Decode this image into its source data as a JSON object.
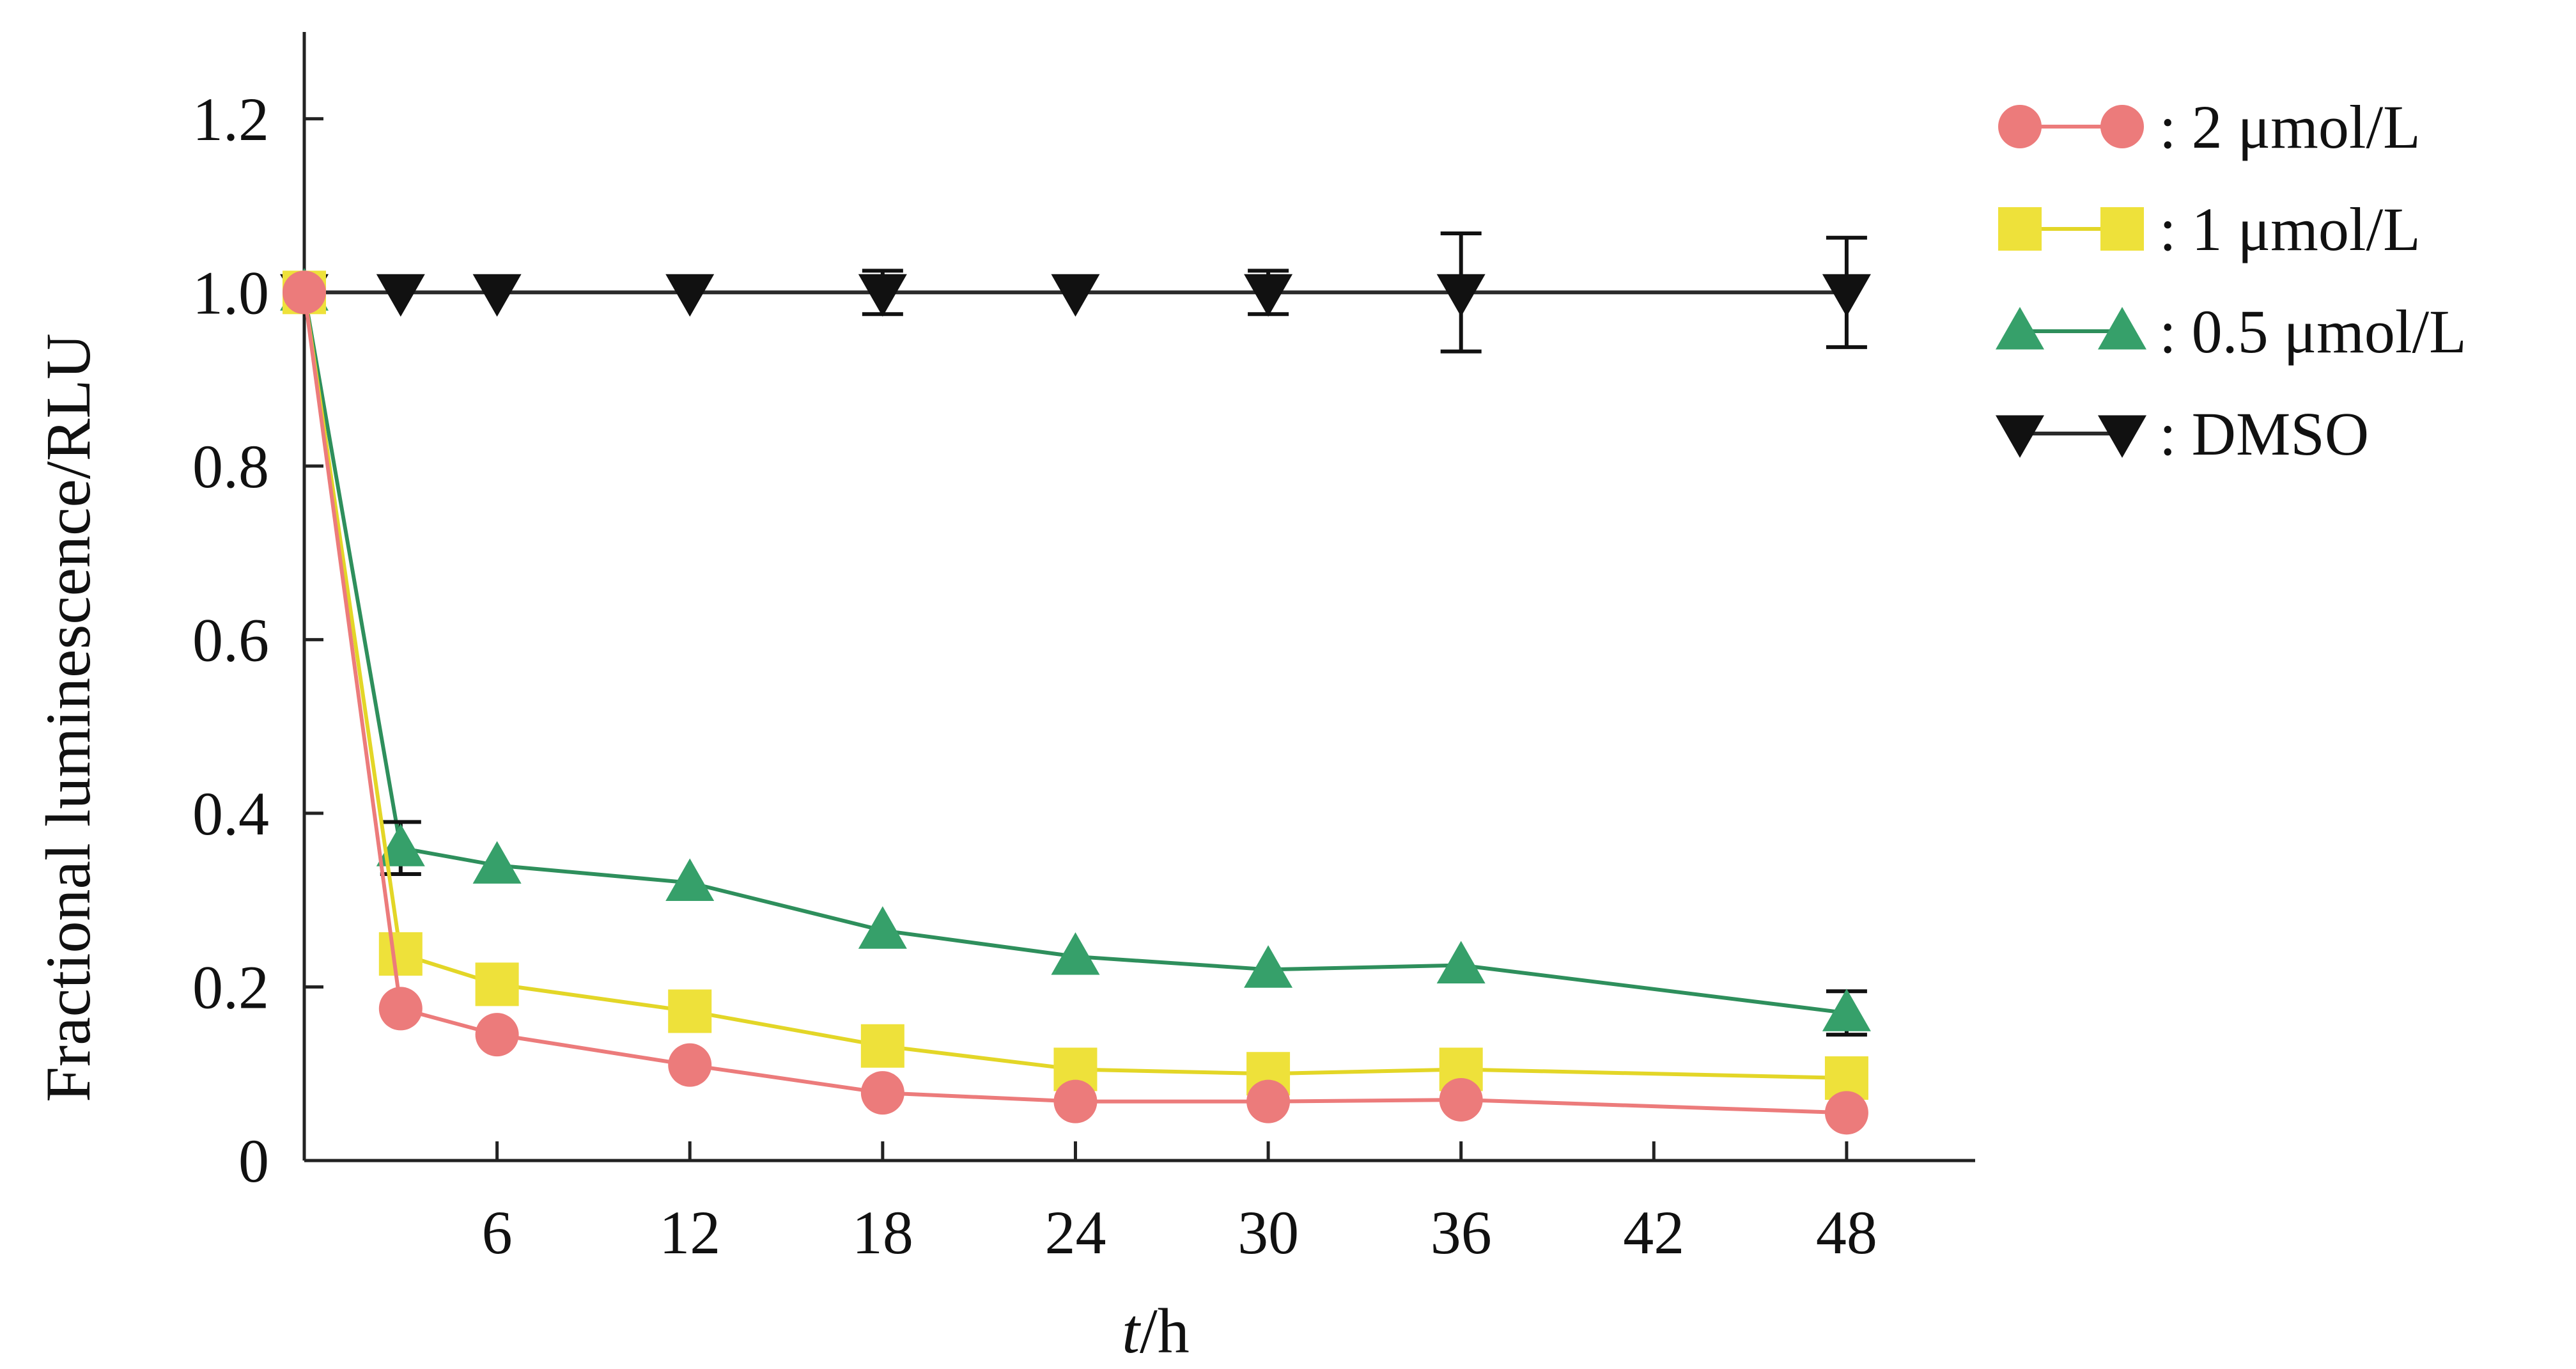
{
  "chart_data": {
    "type": "line",
    "xlabel_italic": "t",
    "xlabel_rest": "/h",
    "ylabel": "Fractional luminescence/RLU",
    "xlim": [
      0,
      52
    ],
    "ylim": [
      0,
      1.3
    ],
    "xticks": [
      {
        "value": 6,
        "label": "6"
      },
      {
        "value": 12,
        "label": "12"
      },
      {
        "value": 18,
        "label": "18"
      },
      {
        "value": 24,
        "label": "24"
      },
      {
        "value": 30,
        "label": "30"
      },
      {
        "value": 36,
        "label": "36"
      },
      {
        "value": 42,
        "label": "42"
      },
      {
        "value": 48,
        "label": "48"
      }
    ],
    "yticks": [
      {
        "value": 0,
        "label": "0"
      },
      {
        "value": 0.2,
        "label": "0.2"
      },
      {
        "value": 0.4,
        "label": "0.4"
      },
      {
        "value": 0.6,
        "label": "0.6"
      },
      {
        "value": 0.8,
        "label": "0.8"
      },
      {
        "value": 1.0,
        "label": "1.0"
      },
      {
        "value": 1.2,
        "label": "1.2"
      }
    ],
    "legend_position": "top-right",
    "series": [
      {
        "name": ": 2 μmol/L",
        "marker": "circle",
        "color": "#ec7b7b",
        "line_color": "#ec7b7b",
        "x": [
          0,
          3,
          6,
          12,
          18,
          24,
          30,
          36,
          48
        ],
        "y": [
          1.0,
          0.175,
          0.145,
          0.11,
          0.078,
          0.068,
          0.068,
          0.07,
          0.055
        ],
        "err": [
          null,
          null,
          null,
          null,
          null,
          null,
          null,
          null,
          null
        ]
      },
      {
        "name": ": 1 μmol/L",
        "marker": "square",
        "color": "#eee13a",
        "line_color": "#e3d627",
        "x": [
          0,
          3,
          6,
          12,
          18,
          24,
          30,
          36,
          48
        ],
        "y": [
          1.0,
          0.238,
          0.203,
          0.172,
          0.132,
          0.105,
          0.1,
          0.105,
          0.095
        ],
        "err": [
          null,
          null,
          null,
          null,
          null,
          null,
          null,
          null,
          null
        ]
      },
      {
        "name": ": 0.5 μmol/L",
        "marker": "triangle-up",
        "color": "#36a06a",
        "line_color": "#2e8f5c",
        "x": [
          0,
          3,
          6,
          12,
          18,
          24,
          30,
          36,
          48
        ],
        "y": [
          1.0,
          0.36,
          0.34,
          0.32,
          0.265,
          0.235,
          0.22,
          0.225,
          0.17
        ],
        "err": [
          null,
          0.03,
          null,
          null,
          null,
          null,
          null,
          null,
          0.025
        ]
      },
      {
        "name": ": DMSO",
        "marker": "triangle-down",
        "color": "#111111",
        "line_color": "#2a2a2a",
        "x": [
          0,
          3,
          6,
          12,
          18,
          24,
          30,
          36,
          48
        ],
        "y": [
          1.0,
          1.0,
          1.0,
          1.0,
          1.0,
          1.0,
          1.0,
          1.0,
          1.0
        ],
        "err": [
          null,
          null,
          null,
          null,
          0.025,
          null,
          0.025,
          0.068,
          0.063
        ]
      }
    ]
  }
}
